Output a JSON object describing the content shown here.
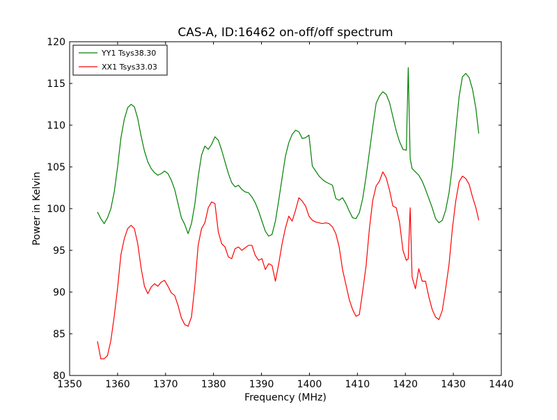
{
  "chart_data": {
    "type": "line",
    "title": "CAS-A, ID:16462 on-off/off spectrum",
    "xlabel": "Frequency (MHz)",
    "ylabel": "Power in Kelvin",
    "xlim": [
      1350,
      1440
    ],
    "ylim": [
      80,
      120
    ],
    "xticks": [
      1350,
      1360,
      1370,
      1380,
      1390,
      1400,
      1410,
      1420,
      1430,
      1440
    ],
    "yticks": [
      80,
      85,
      90,
      95,
      100,
      105,
      110,
      115,
      120
    ],
    "grid": false,
    "legend_position": "top-left",
    "series": [
      {
        "name": "YY1 Tsys38.30",
        "color": "#008000",
        "x": [
          1355.8,
          1356.5,
          1357.2,
          1357.9,
          1358.6,
          1359.3,
          1360.0,
          1360.7,
          1361.4,
          1362.1,
          1362.8,
          1363.5,
          1364.2,
          1364.9,
          1365.6,
          1366.3,
          1367.0,
          1367.7,
          1368.4,
          1369.1,
          1369.8,
          1370.5,
          1371.2,
          1371.9,
          1372.6,
          1373.3,
          1374.0,
          1374.7,
          1375.4,
          1376.1,
          1376.8,
          1377.5,
          1378.2,
          1378.9,
          1379.6,
          1380.3,
          1381.0,
          1381.7,
          1382.4,
          1383.1,
          1383.8,
          1384.5,
          1385.2,
          1385.9,
          1386.6,
          1387.3,
          1388.0,
          1388.7,
          1389.4,
          1390.1,
          1390.8,
          1391.5,
          1392.2,
          1392.9,
          1393.6,
          1394.3,
          1395.0,
          1395.7,
          1396.4,
          1397.1,
          1397.8,
          1398.5,
          1399.2,
          1399.9,
          1400.6,
          1401.3,
          1402.0,
          1402.7,
          1403.4,
          1404.1,
          1404.8,
          1405.5,
          1406.2,
          1406.9,
          1407.6,
          1408.3,
          1409.0,
          1409.7,
          1410.4,
          1411.1,
          1411.8,
          1412.5,
          1413.2,
          1413.9,
          1414.6,
          1415.3,
          1416.0,
          1416.7,
          1417.4,
          1418.1,
          1418.8,
          1419.5,
          1420.2,
          1420.6,
          1421.0,
          1421.4,
          1422.1,
          1422.8,
          1423.5,
          1424.2,
          1424.9,
          1425.6,
          1426.3,
          1427.0,
          1427.7,
          1428.4,
          1429.1,
          1429.8,
          1430.5,
          1431.2,
          1431.9,
          1432.6,
          1433.3,
          1434.0,
          1434.7,
          1435.3
        ],
        "y": [
          99.6,
          98.8,
          98.2,
          98.9,
          100.0,
          102.0,
          105.0,
          108.5,
          110.7,
          112.1,
          112.5,
          112.2,
          110.8,
          108.7,
          106.9,
          105.6,
          104.8,
          104.3,
          104.0,
          104.2,
          104.5,
          104.2,
          103.4,
          102.3,
          100.6,
          98.9,
          98.1,
          97.0,
          98.2,
          100.5,
          103.8,
          106.4,
          107.5,
          107.1,
          107.7,
          108.6,
          108.2,
          107.0,
          105.6,
          104.2,
          103.1,
          102.6,
          102.8,
          102.3,
          102.0,
          101.9,
          101.4,
          100.7,
          99.7,
          98.5,
          97.3,
          96.7,
          96.9,
          98.5,
          101.0,
          103.7,
          106.3,
          107.9,
          108.9,
          109.4,
          109.2,
          108.4,
          108.5,
          108.8,
          105.1,
          104.5,
          103.9,
          103.5,
          103.2,
          103.0,
          102.8,
          101.2,
          101.0,
          101.3,
          100.6,
          99.7,
          98.9,
          98.8,
          99.5,
          101.2,
          103.8,
          106.8,
          109.8,
          112.6,
          113.5,
          114.0,
          113.7,
          112.7,
          111.0,
          109.3,
          108.0,
          107.1,
          107.0,
          116.9,
          106.0,
          104.8,
          104.4,
          104.0,
          103.3,
          102.3,
          101.2,
          100.1,
          98.8,
          98.3,
          98.6,
          99.8,
          101.9,
          105.1,
          109.3,
          113.4,
          115.8,
          116.2,
          115.7,
          114.3,
          112.0,
          109.0
        ]
      },
      {
        "name": "XX1 Tsys33.03",
        "color": "#ff0000",
        "x": [
          1355.8,
          1356.5,
          1357.2,
          1357.9,
          1358.6,
          1359.3,
          1360.0,
          1360.7,
          1361.4,
          1362.1,
          1362.8,
          1363.5,
          1364.2,
          1364.9,
          1365.6,
          1366.3,
          1367.0,
          1367.7,
          1368.4,
          1369.1,
          1369.8,
          1370.5,
          1371.2,
          1371.9,
          1372.6,
          1373.3,
          1374.0,
          1374.7,
          1375.4,
          1376.1,
          1376.8,
          1377.5,
          1378.2,
          1378.9,
          1379.6,
          1380.3,
          1381.0,
          1381.7,
          1382.4,
          1383.1,
          1383.8,
          1384.5,
          1385.2,
          1385.9,
          1386.6,
          1387.3,
          1388.0,
          1388.7,
          1389.4,
          1390.1,
          1390.8,
          1391.5,
          1392.2,
          1392.9,
          1393.6,
          1394.3,
          1395.0,
          1395.7,
          1396.4,
          1397.1,
          1397.8,
          1398.5,
          1399.2,
          1399.9,
          1400.6,
          1401.3,
          1402.0,
          1402.7,
          1403.4,
          1404.1,
          1404.8,
          1405.5,
          1406.2,
          1406.9,
          1407.6,
          1408.3,
          1409.0,
          1409.7,
          1410.4,
          1411.1,
          1411.8,
          1412.5,
          1413.2,
          1413.9,
          1414.6,
          1415.3,
          1416.0,
          1416.7,
          1417.4,
          1418.1,
          1418.8,
          1419.5,
          1420.2,
          1420.6,
          1421.0,
          1421.4,
          1422.1,
          1422.8,
          1423.5,
          1424.2,
          1424.9,
          1425.6,
          1426.3,
          1427.0,
          1427.7,
          1428.4,
          1429.1,
          1429.8,
          1430.5,
          1431.2,
          1431.9,
          1432.6,
          1433.3,
          1434.0,
          1434.7,
          1435.3
        ],
        "y": [
          84.1,
          82.0,
          82.0,
          82.4,
          84.2,
          87.1,
          90.5,
          94.5,
          96.4,
          97.6,
          98.0,
          97.6,
          95.8,
          92.9,
          90.7,
          89.8,
          90.6,
          91.0,
          90.7,
          91.2,
          91.4,
          90.7,
          89.9,
          89.6,
          88.4,
          86.9,
          86.1,
          85.9,
          87.0,
          90.7,
          95.6,
          97.6,
          98.3,
          100.1,
          100.8,
          100.6,
          97.2,
          95.8,
          95.4,
          94.2,
          94.0,
          95.2,
          95.4,
          95.0,
          95.3,
          95.6,
          95.6,
          94.4,
          93.8,
          94.0,
          92.7,
          93.4,
          93.2,
          91.3,
          93.4,
          95.8,
          97.7,
          99.1,
          98.5,
          99.8,
          101.3,
          100.9,
          100.3,
          99.1,
          98.6,
          98.4,
          98.3,
          98.2,
          98.3,
          98.2,
          97.8,
          97.0,
          95.4,
          92.7,
          90.9,
          89.1,
          87.9,
          87.1,
          87.3,
          90.1,
          93.1,
          97.6,
          101.0,
          102.7,
          103.3,
          104.4,
          103.7,
          102.2,
          100.3,
          100.1,
          98.3,
          95.0,
          93.8,
          94.0,
          100.1,
          91.8,
          90.4,
          92.8,
          91.3,
          91.3,
          89.4,
          87.9,
          87.0,
          86.7,
          87.8,
          90.4,
          93.3,
          97.6,
          100.9,
          103.2,
          103.9,
          103.6,
          102.9,
          101.4,
          100.1,
          98.6
        ]
      }
    ]
  }
}
